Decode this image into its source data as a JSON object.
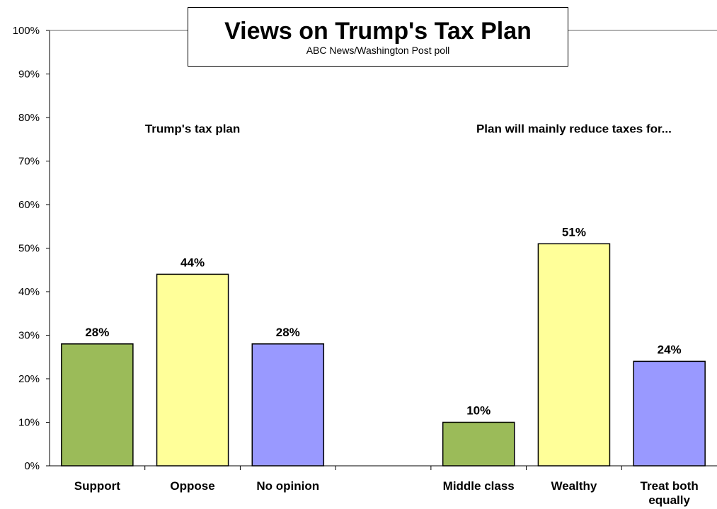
{
  "chart_data": {
    "type": "bar",
    "title": "Views on Trump's Tax Plan",
    "subtitle": "ABC News/Washington Post poll",
    "ylim": [
      0,
      100
    ],
    "y_ticks": [
      "0%",
      "10%",
      "20%",
      "30%",
      "40%",
      "50%",
      "60%",
      "70%",
      "80%",
      "90%",
      "100%"
    ],
    "grid": false,
    "groups": [
      {
        "label": "Trump's tax plan",
        "categories": [
          "Support",
          "Oppose",
          "No opinion"
        ],
        "values": [
          28,
          44,
          28
        ],
        "value_labels": [
          "28%",
          "44%",
          "28%"
        ]
      },
      {
        "label": "Plan will mainly reduce taxes for...",
        "categories": [
          "Middle class",
          "Wealthy",
          "Treat both equally"
        ],
        "values": [
          10,
          51,
          24
        ],
        "value_labels": [
          "10%",
          "51%",
          "24%"
        ]
      }
    ],
    "colors": [
      "#9bbb59",
      "#ffff99",
      "#9999ff"
    ]
  }
}
